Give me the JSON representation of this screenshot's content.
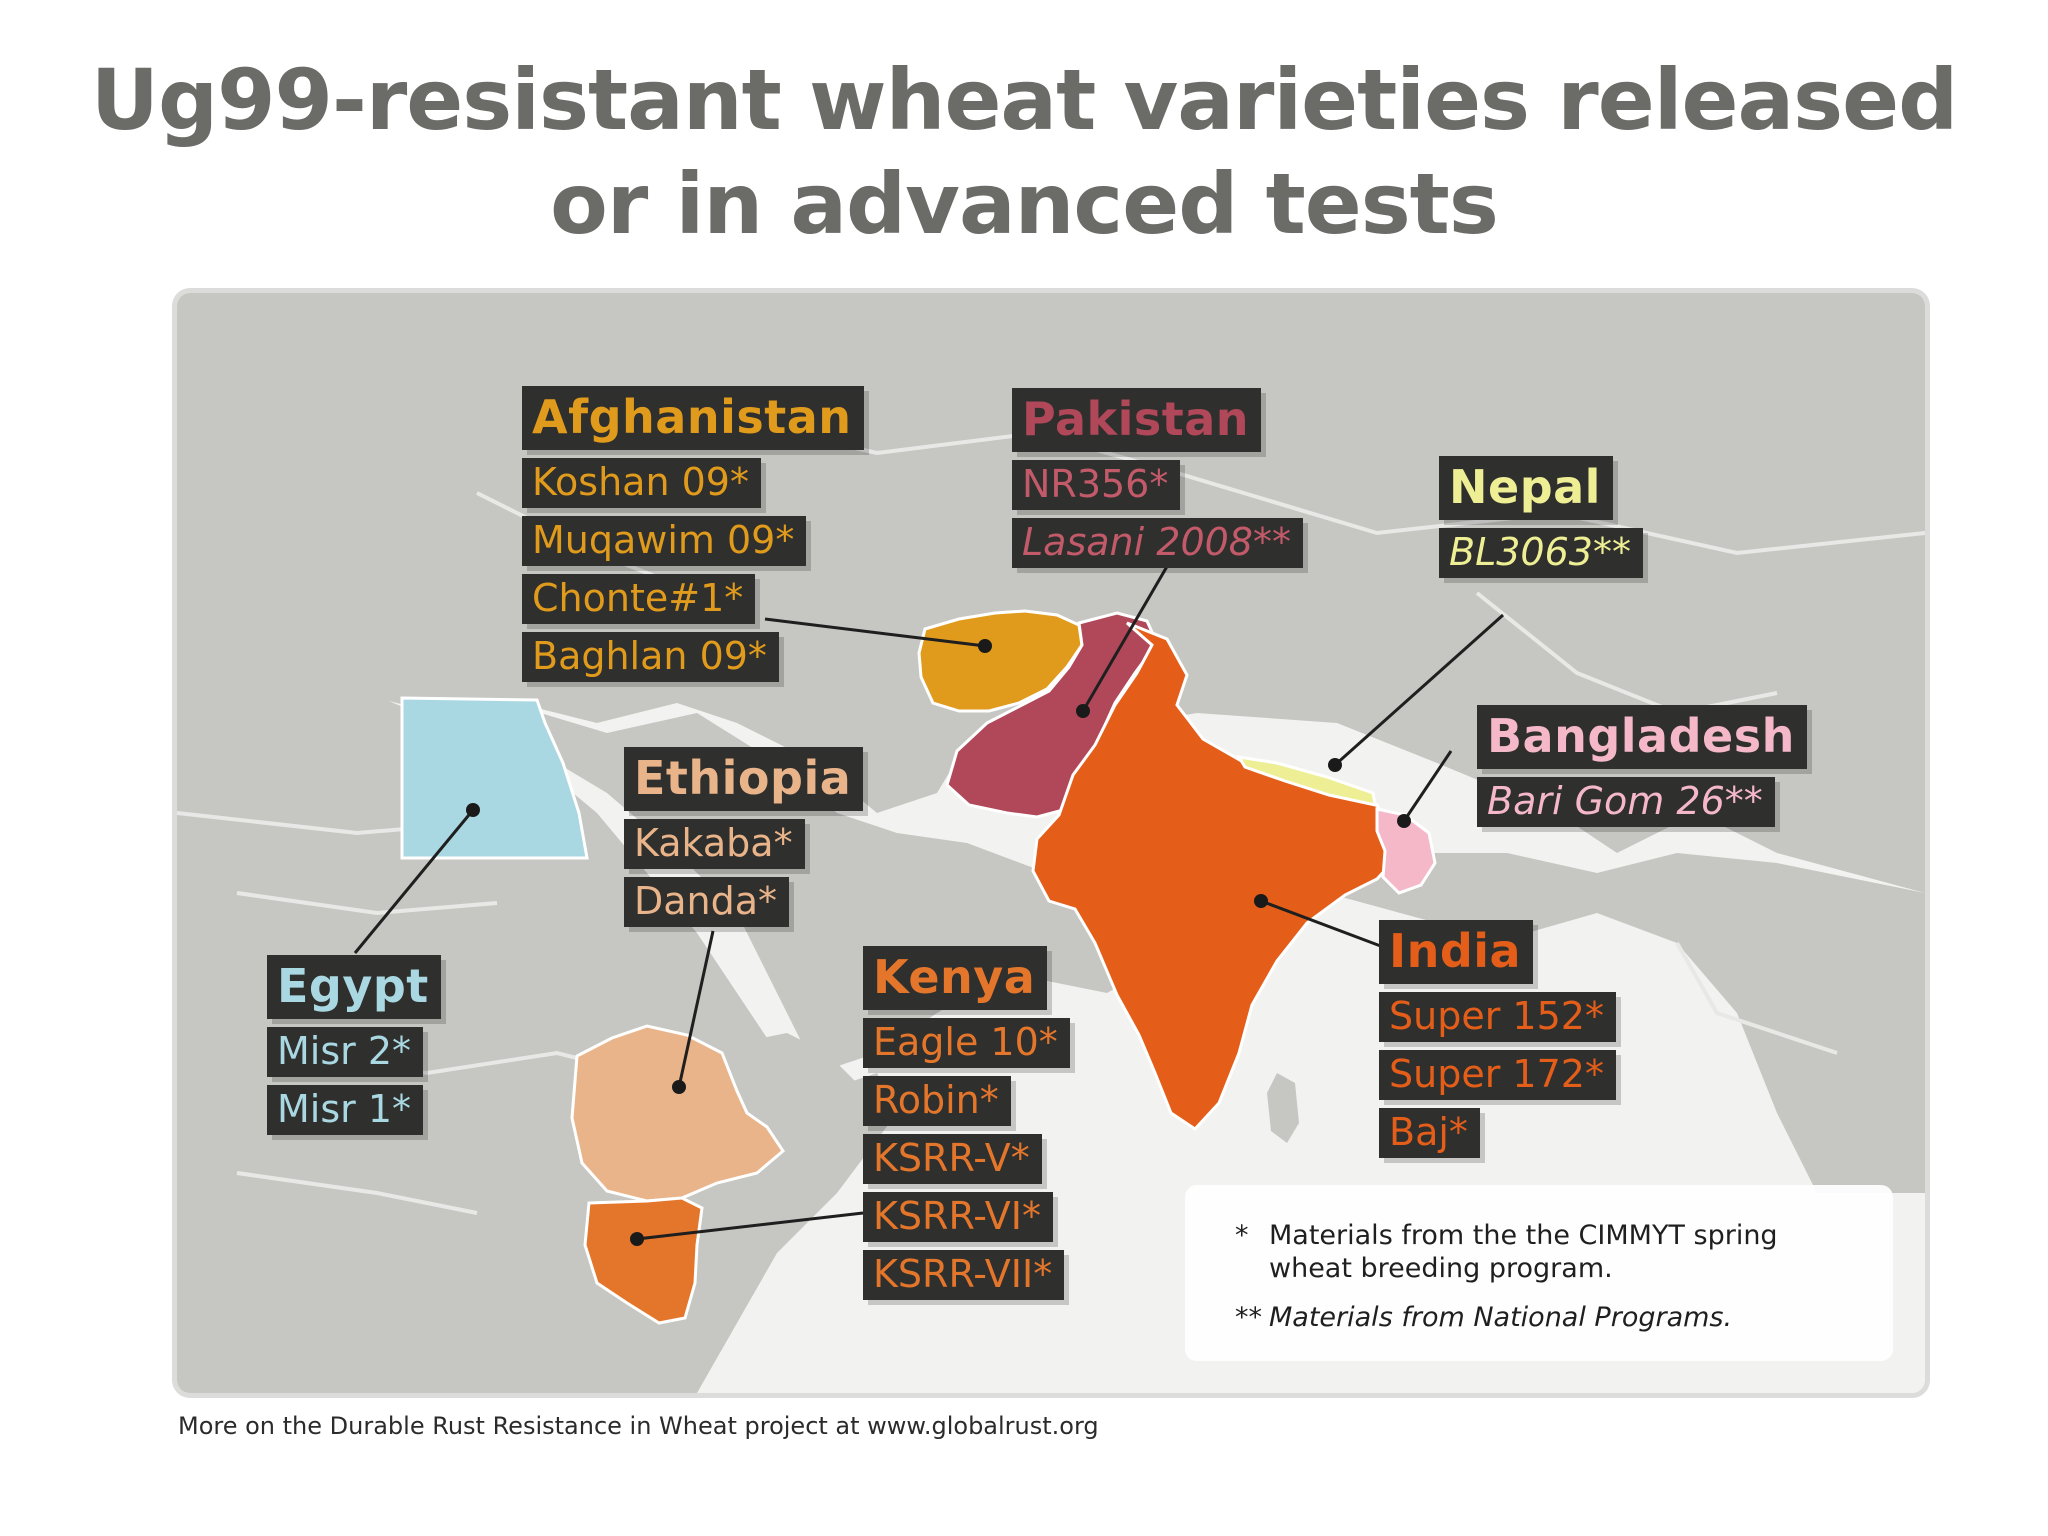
{
  "title": {
    "line1": "Ug99-resistant wheat varieties released",
    "line2": "or in advanced tests"
  },
  "colors": {
    "land": "#c6c6c2",
    "sea": "#f2f2f0",
    "border": "#ffffff",
    "label_bg": "#2f2f2d",
    "afghanistan": "#e19b1c",
    "pakistan": "#ad4655",
    "nepal": "#ecec8c",
    "bangladesh": "#f3b4c6",
    "india": "#e25a17",
    "egypt": "#a9d7e1",
    "ethiopia": "#e8b286",
    "kenya": "#e0712a"
  },
  "countries": [
    {
      "name": "Afghanistan",
      "color": "#e19b1c",
      "items": [
        "Koshan 09*",
        "Muqawim 09*",
        "Chonte#1*",
        "Baghlan 09*"
      ]
    },
    {
      "name": "Pakistan",
      "color": "#b0485a",
      "items": [
        "NR356*",
        "Lasani 2008**"
      ]
    },
    {
      "name": "Nepal",
      "color": "#eeee94",
      "items": [
        "BL3063**"
      ]
    },
    {
      "name": "Bangladesh",
      "color": "#f4b8c9",
      "items": [
        "Bari Gom 26**"
      ]
    },
    {
      "name": "Ethiopia",
      "color": "#eab48a",
      "items": [
        "Kakaba*",
        "Danda*"
      ]
    },
    {
      "name": "Kenya",
      "color": "#e4762c",
      "items": [
        "Eagle 10*",
        "Robin*",
        "KSRR-V*",
        "KSRR-VI*",
        "KSRR-VII*"
      ]
    },
    {
      "name": "India",
      "color": "#e45e1a",
      "items": [
        "Super 152*",
        "Super 172*",
        "Baj*"
      ]
    },
    {
      "name": "Egypt",
      "color": "#a9d8e3",
      "items": [
        "Misr 2*",
        "Misr 1*"
      ]
    }
  ],
  "notes": {
    "note1_mark": "*",
    "note1_text": "Materials from the the CIMMYT spring wheat breeding program.",
    "note2_mark": "**",
    "note2_text": "Materials from National Programs."
  },
  "footer": "More on the Durable Rust Resistance in Wheat project at www.globalrust.org"
}
